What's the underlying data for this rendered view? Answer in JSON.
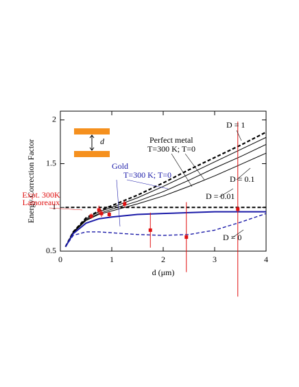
{
  "chart_data": {
    "type": "line",
    "xlabel": "d (μm)",
    "ylabel": "Energy Correction Factor",
    "xlim": [
      0,
      4
    ],
    "ylim": [
      0.5,
      2.1
    ],
    "xticks": [
      0,
      1,
      2,
      3,
      4
    ],
    "yticks": [
      0.5,
      1,
      1.5,
      2
    ],
    "x": [
      0.1,
      0.25,
      0.5,
      0.75,
      1,
      1.5,
      2,
      2.5,
      3,
      3.5,
      4
    ],
    "series": [
      {
        "color": "#000000",
        "dashed": true,
        "width": 2.2,
        "values": [
          0.55,
          0.72,
          0.88,
          0.96,
          1.02,
          1.14,
          1.28,
          1.43,
          1.57,
          1.71,
          1.86
        ]
      },
      {
        "color": "#000000",
        "dashed": false,
        "width": 1,
        "values": [
          0.55,
          0.72,
          0.87,
          0.95,
          1.0,
          1.11,
          1.24,
          1.38,
          1.52,
          1.66,
          1.8
        ]
      },
      {
        "color": "#000000",
        "dashed": false,
        "width": 1,
        "values": [
          0.55,
          0.72,
          0.86,
          0.93,
          0.98,
          1.07,
          1.18,
          1.31,
          1.45,
          1.58,
          1.72
        ]
      },
      {
        "color": "#000000",
        "dashed": false,
        "width": 1,
        "values": [
          0.55,
          0.71,
          0.85,
          0.92,
          0.96,
          1.04,
          1.13,
          1.24,
          1.36,
          1.49,
          1.62
        ]
      },
      {
        "color": "#1a1aa8",
        "dashed": false,
        "width": 2,
        "values": [
          0.55,
          0.7,
          0.82,
          0.87,
          0.89,
          0.92,
          0.93,
          0.94,
          0.95,
          0.95,
          0.95
        ]
      },
      {
        "color": "#1a1aa8",
        "dashed": true,
        "width": 1.4,
        "values": [
          0.55,
          0.68,
          0.72,
          0.72,
          0.71,
          0.69,
          0.68,
          0.69,
          0.74,
          0.83,
          0.93
        ]
      },
      {
        "color": "#000000",
        "dashed": true,
        "width": 2,
        "values": [
          1,
          1,
          1,
          1,
          1,
          1,
          1,
          1,
          1,
          1,
          1
        ]
      }
    ],
    "experiment": {
      "color": "#e01010",
      "x": [
        0.6,
        0.75,
        0.8,
        0.95,
        1.25,
        1.75,
        2.45,
        3.45
      ],
      "values": [
        0.9,
        0.97,
        0.93,
        0.92,
        1.04,
        0.74,
        0.66,
        0.98
      ],
      "errors": [
        0.03,
        0.05,
        0.04,
        0.03,
        0.04,
        0.2,
        0.4,
        1.0
      ]
    },
    "annotations": [
      {
        "text": "Perfect metal",
        "color": "#000000"
      },
      {
        "text": "T=300 K; T=0",
        "color": "#000000"
      },
      {
        "text": "Gold",
        "color": "#1a1aa8"
      },
      {
        "text": "T=300 K; T=0",
        "color": "#1a1aa8"
      },
      {
        "text": "Expt. 300K",
        "color": "#e01010"
      },
      {
        "text": "Lamoreaux",
        "color": "#e01010"
      },
      {
        "text": "D = 1",
        "color": "#000000"
      },
      {
        "text": "D = 0.1",
        "color": "#000000"
      },
      {
        "text": "D = 0.01",
        "color": "#000000"
      },
      {
        "text": "D = 0",
        "color": "#000000"
      },
      {
        "text": "d",
        "color": "#000000"
      }
    ]
  }
}
